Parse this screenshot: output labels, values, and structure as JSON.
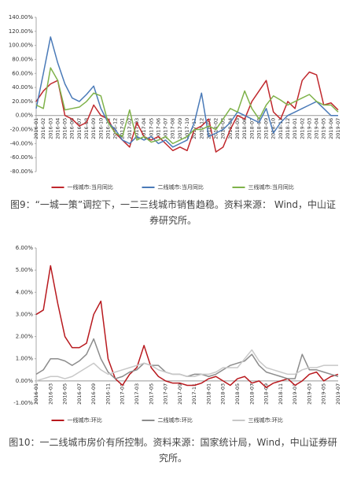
{
  "chart_data": [
    {
      "type": "line",
      "caption": "图9：“一城一策”调控下，一二三线城市销售趋稳。资料来源： Wind，中山证券研究所。",
      "categories": [
        "2016-01",
        "2016-02",
        "2016-03",
        "2016-04",
        "2016-05",
        "2016-06",
        "2016-07",
        "2016-08",
        "2016-09",
        "2016-10",
        "2016-11",
        "2016-12",
        "2017-01",
        "2017-02",
        "2017-03",
        "2017-04",
        "2017-05",
        "2017-06",
        "2017-07",
        "2017-08",
        "2017-09",
        "2017-10",
        "2017-11",
        "2017-12",
        "2018-01",
        "2018-02",
        "2018-03",
        "2018-04",
        "2018-05",
        "2018-06",
        "2018-07",
        "2018-08",
        "2018-09",
        "2018-10",
        "2018-11",
        "2018-12",
        "2019-01",
        "2019-02",
        "2019-03",
        "2019-04",
        "2019-05",
        "2019-06",
        "2019-07"
      ],
      "series": [
        {
          "name": "一线城市:当月同比",
          "color": "#c0282d",
          "values": [
            20,
            35,
            45,
            50,
            0,
            -5,
            -15,
            -10,
            15,
            0,
            -5,
            -25,
            -35,
            -45,
            -10,
            -30,
            -35,
            -30,
            -40,
            -50,
            -45,
            -50,
            -20,
            -15,
            -5,
            -52,
            -45,
            -20,
            0,
            -5,
            20,
            35,
            50,
            5,
            -5,
            20,
            10,
            50,
            62,
            58,
            15,
            18,
            8
          ]
        },
        {
          "name": "二线城市:当月同比",
          "color": "#4a7ab8",
          "values": [
            10,
            60,
            112,
            75,
            45,
            25,
            20,
            30,
            42,
            10,
            -10,
            -20,
            -35,
            -40,
            -30,
            -35,
            -30,
            -40,
            -35,
            -45,
            -40,
            -35,
            -10,
            32,
            -30,
            -25,
            -20,
            -10,
            5,
            0,
            -5,
            -10,
            10,
            -25,
            -10,
            0,
            5,
            10,
            15,
            20,
            10,
            0,
            0
          ]
        },
        {
          "name": "三线城市:当月同比",
          "color": "#7fb24a",
          "values": [
            15,
            10,
            68,
            50,
            8,
            10,
            12,
            20,
            32,
            28,
            -10,
            -25,
            -30,
            8,
            -35,
            -30,
            -38,
            -35,
            -30,
            -40,
            -35,
            -30,
            -20,
            -20,
            -15,
            -20,
            -5,
            10,
            5,
            35,
            10,
            -5,
            15,
            28,
            22,
            15,
            20,
            25,
            30,
            20,
            15,
            15,
            5
          ]
        }
      ],
      "ylim": [
        -80,
        140
      ],
      "yticks": [
        {
          "value": -80,
          "label": "-80.00%"
        },
        {
          "value": -60,
          "label": "-60.00%"
        },
        {
          "value": -40,
          "label": "-40.00%"
        },
        {
          "value": -20,
          "label": "-20.00%"
        },
        {
          "value": 0,
          "label": "0.00%"
        },
        {
          "value": 20,
          "label": "20.00%"
        },
        {
          "value": 40,
          "label": "40.00%"
        },
        {
          "value": 60,
          "label": "60.00%"
        },
        {
          "value": 80,
          "label": "80.00%"
        },
        {
          "value": 100,
          "label": "100.00%"
        },
        {
          "value": 120,
          "label": "120.00%"
        },
        {
          "value": 140,
          "label": "140.00%"
        }
      ],
      "grid": false,
      "legend": "bottom"
    },
    {
      "type": "line",
      "caption": "图10：一二线城市房价有所控制。资料来源：国家统计局，Wind，中山证券研究所。",
      "categories": [
        "2016-01",
        null,
        "2016-03",
        null,
        "2016-05",
        null,
        "2016-07",
        null,
        "2016-09",
        null,
        "2016-11",
        null,
        "2017-01",
        null,
        "2017-03",
        null,
        "2017-05",
        null,
        "2017-07",
        null,
        "2017-09",
        null,
        "2017-11",
        null,
        "2018-01",
        null,
        "2018-03",
        null,
        "2018-05",
        null,
        "2018-07",
        null,
        "2018-09",
        null,
        "2018-11",
        null,
        "2019-01",
        null,
        "2019-03",
        null,
        "2019-05",
        null,
        "2019-07"
      ],
      "series": [
        {
          "name": "一线城市:环比",
          "color": "#b8191e",
          "values": [
            3.0,
            3.2,
            5.2,
            3.5,
            2.0,
            1.5,
            1.5,
            1.7,
            3.0,
            3.6,
            1.0,
            0.1,
            -0.2,
            0.3,
            0.6,
            1.6,
            0.6,
            0.2,
            0.0,
            -0.1,
            -0.1,
            -0.2,
            -0.2,
            -0.1,
            0.1,
            0.2,
            0.0,
            -0.2,
            0.1,
            0.2,
            -0.1,
            0.0,
            -0.3,
            -0.1,
            0.0,
            0.1,
            -0.2,
            0.0,
            0.3,
            0.4,
            0.0,
            0.2,
            0.3
          ]
        },
        {
          "name": "二线城市:环比",
          "color": "#8c8c8c",
          "values": [
            0.3,
            0.5,
            1.0,
            1.0,
            0.9,
            0.7,
            0.9,
            1.2,
            1.9,
            1.0,
            0.4,
            0.1,
            0.2,
            0.4,
            0.5,
            0.8,
            0.7,
            0.7,
            0.4,
            0.3,
            0.3,
            0.2,
            0.3,
            0.3,
            0.2,
            0.3,
            0.5,
            0.7,
            0.8,
            0.9,
            1.2,
            0.7,
            0.4,
            0.3,
            0.2,
            0.1,
            0.1,
            1.2,
            0.5,
            0.5,
            0.4,
            0.3,
            0.2
          ]
        },
        {
          "name": "三线城市:环比",
          "color": "#c8c8c8",
          "values": [
            0.0,
            0.1,
            0.2,
            0.2,
            0.1,
            0.2,
            0.4,
            0.6,
            0.8,
            0.5,
            0.3,
            0.4,
            0.5,
            0.6,
            0.7,
            0.8,
            0.7,
            0.5,
            0.4,
            0.3,
            0.3,
            0.2,
            0.2,
            0.3,
            0.3,
            0.4,
            0.6,
            0.6,
            0.6,
            1.0,
            1.4,
            0.9,
            0.6,
            0.5,
            0.4,
            0.3,
            0.3,
            0.5,
            0.6,
            0.6,
            0.7,
            0.7,
            0.7
          ]
        }
      ],
      "ylim": [
        -1,
        6
      ],
      "yticks": [
        {
          "value": -1,
          "label": "-1.00%"
        },
        {
          "value": 0,
          "label": "0.00%"
        },
        {
          "value": 1,
          "label": "1.00%"
        },
        {
          "value": 2,
          "label": "2.00%"
        },
        {
          "value": 3,
          "label": "3.00%"
        },
        {
          "value": 4,
          "label": "4.00%"
        },
        {
          "value": 5,
          "label": "5.00%"
        },
        {
          "value": 6,
          "label": "6.00%"
        }
      ],
      "grid": false,
      "legend": "bottom"
    }
  ]
}
